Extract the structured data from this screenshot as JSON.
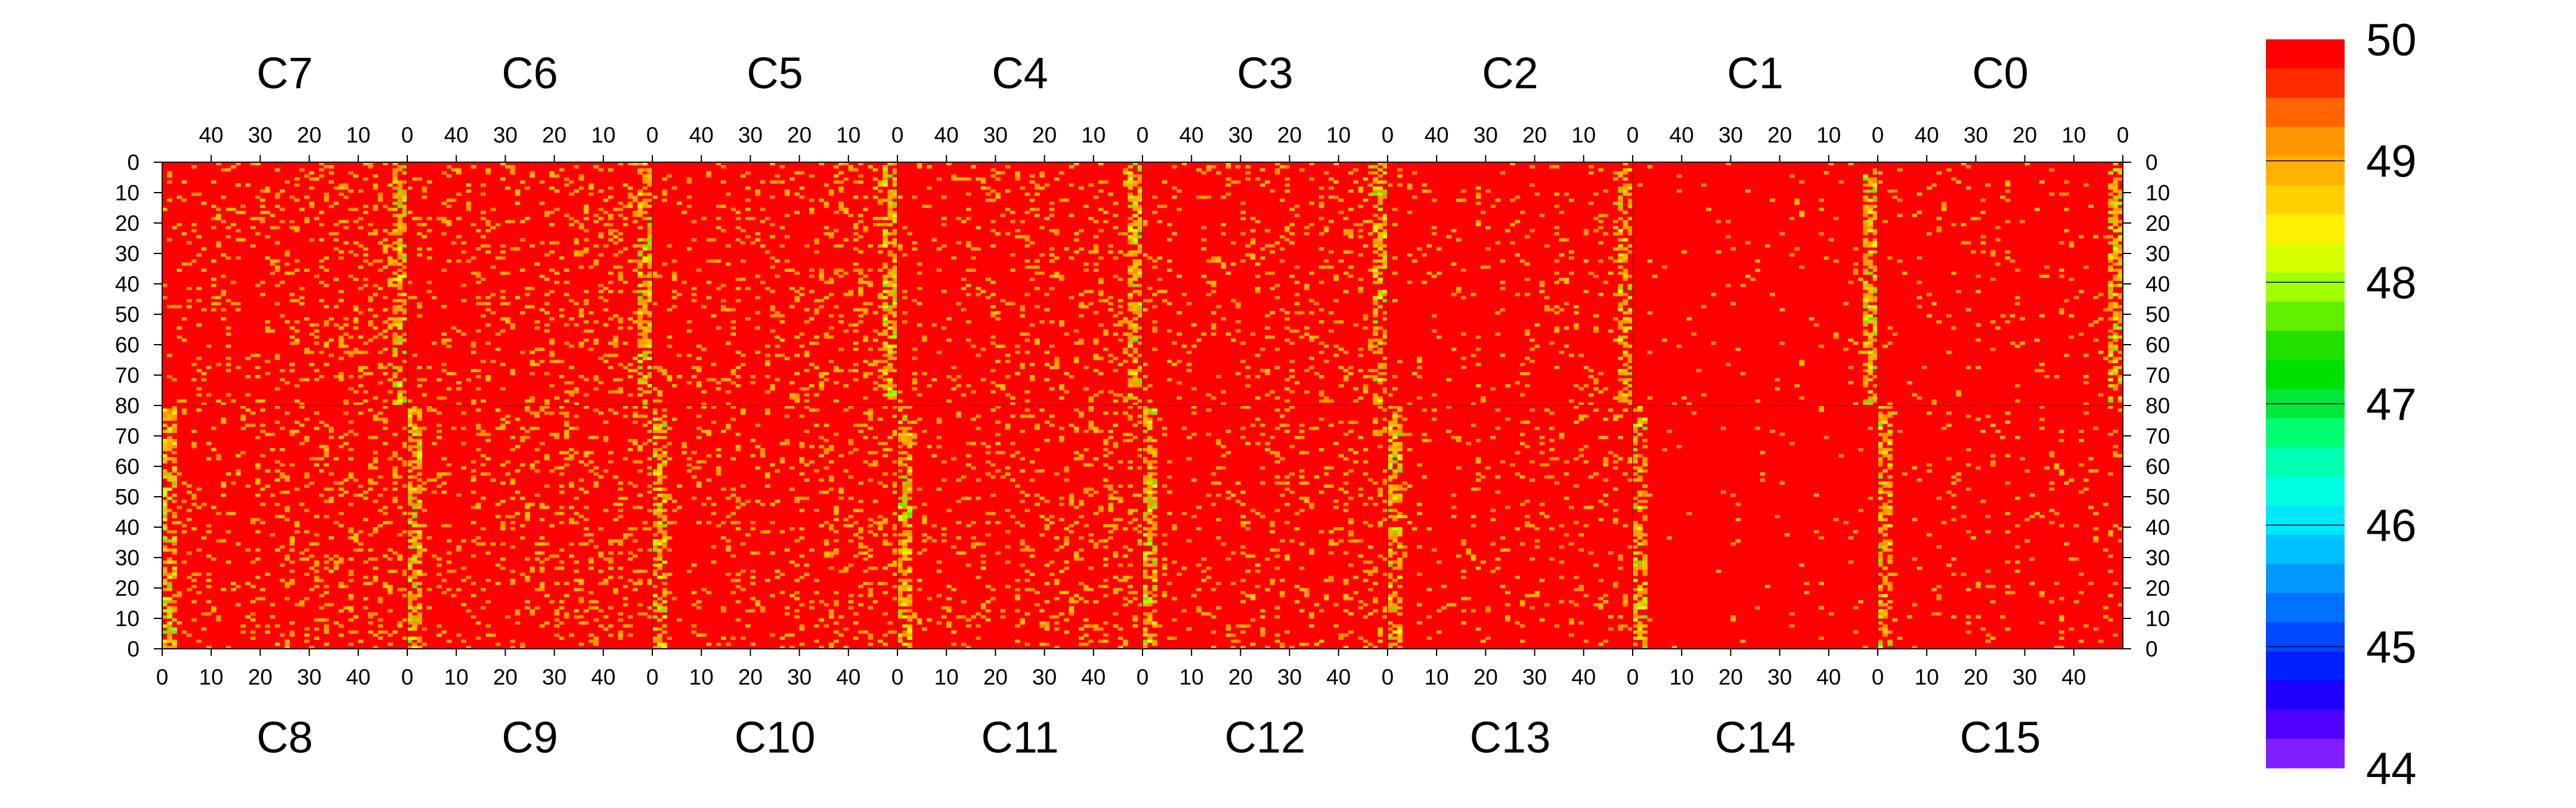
{
  "chart_data": {
    "type": "heatmap",
    "panels_top": [
      "C7",
      "C6",
      "C5",
      "C4",
      "C3",
      "C2",
      "C1",
      "C0"
    ],
    "panels_bottom": [
      "C8",
      "C9",
      "C10",
      "C11",
      "C12",
      "C13",
      "C14",
      "C15"
    ],
    "top_x_ticks": [
      "40",
      "30",
      "20",
      "10",
      "0"
    ],
    "bottom_x_ticks": [
      "0",
      "10",
      "20",
      "30",
      "40"
    ],
    "y_ticks_upper": [
      "0",
      "10",
      "20",
      "30",
      "40",
      "50",
      "60",
      "70",
      "80"
    ],
    "y_ticks_lower": [
      "70",
      "60",
      "50",
      "40",
      "30",
      "20",
      "10",
      "0"
    ],
    "columns_per_panel": 50,
    "rows_per_half": 80,
    "z_range": [
      44,
      50
    ],
    "colorbar_labels": [
      "50",
      "49",
      "48",
      "47",
      "46",
      "45",
      "44"
    ],
    "colorbar_colors": [
      "#ff0000",
      "#ff2a00",
      "#ff6400",
      "#ff9600",
      "#ffb000",
      "#ffd000",
      "#ffef00",
      "#d8ff00",
      "#a0ff00",
      "#60f000",
      "#20e000",
      "#00e000",
      "#00e838",
      "#00ff70",
      "#00ffb0",
      "#00ffe0",
      "#00e8ff",
      "#00c0ff",
      "#0098ff",
      "#0070ff",
      "#0048ff",
      "#0020ff",
      "#2000ff",
      "#5000ff",
      "#8020ff"
    ],
    "dominant_value": 50,
    "dominant_color": "#ff0000",
    "panel_mean_occupancy": {
      "C7": 0.12,
      "C6": 0.12,
      "C5": 0.11,
      "C4": 0.11,
      "C3": 0.1,
      "C2": 0.06,
      "C1": 0.02,
      "C0": 0.04,
      "C8": 0.12,
      "C9": 0.12,
      "C10": 0.11,
      "C11": 0.11,
      "C12": 0.1,
      "C13": 0.06,
      "C14": 0.02,
      "C15": 0.04
    },
    "edge_column_values": [
      48.5,
      48.8,
      48.6,
      48.2,
      48.7,
      49.2,
      49.8,
      49.5
    ]
  }
}
